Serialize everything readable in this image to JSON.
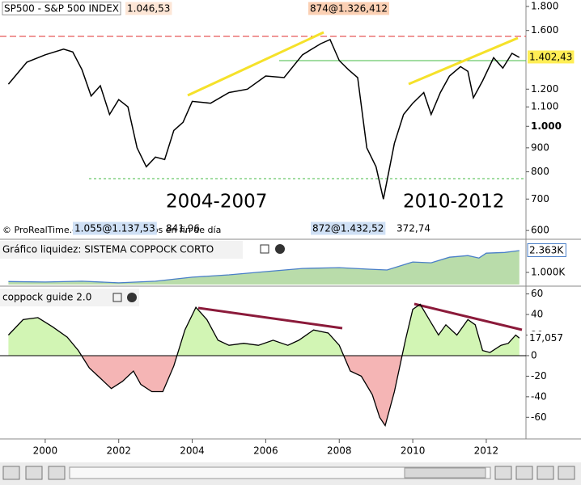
{
  "chart_data": [
    {
      "type": "line",
      "title": "SP500 - S&P 500 INDEX",
      "annotations": [
        "1.046,53",
        "874@1.326,412",
        "2004-2007",
        "2010-2012",
        "© ProRealTime.com Datos recibidos en fin de día",
        "1.055@1.137,53",
        "841,96",
        "872@1.432,52",
        "372,74"
      ],
      "x": [
        1999.0,
        1999.5,
        2000.0,
        2000.5,
        2000.75,
        2001.0,
        2001.25,
        2001.5,
        2001.75,
        2002.0,
        2002.25,
        2002.5,
        2002.75,
        2003.0,
        2003.25,
        2003.5,
        2003.75,
        2004.0,
        2004.5,
        2005.0,
        2005.5,
        2006.0,
        2006.5,
        2007.0,
        2007.5,
        2007.75,
        2008.0,
        2008.25,
        2008.5,
        2008.75,
        2009.0,
        2009.2,
        2009.5,
        2009.75,
        2010.0,
        2010.3,
        2010.5,
        2010.75,
        2011.0,
        2011.3,
        2011.5,
        2011.65,
        2011.9,
        2012.2,
        2012.45,
        2012.7,
        2012.9
      ],
      "series": [
        {
          "name": "SP500",
          "color": "#000000",
          "values": [
            1230,
            1370,
            1420,
            1460,
            1440,
            1320,
            1160,
            1220,
            1060,
            1140,
            1100,
            900,
            820,
            860,
            850,
            980,
            1020,
            1130,
            1120,
            1180,
            1200,
            1280,
            1270,
            1420,
            1500,
            1530,
            1380,
            1320,
            1270,
            900,
            820,
            700,
            920,
            1060,
            1120,
            1180,
            1060,
            1180,
            1280,
            1340,
            1310,
            1150,
            1250,
            1400,
            1330,
            1430,
            1402.43
          ],
          "value_labels": [
            null,
            null,
            null,
            null,
            null,
            null,
            null,
            null,
            null,
            null,
            null,
            null,
            null,
            null,
            null,
            null,
            null,
            null,
            null,
            null,
            null,
            null,
            null,
            null,
            null,
            null,
            null,
            null,
            null,
            null,
            null,
            null,
            null,
            null,
            null,
            null,
            null,
            null,
            null,
            null,
            null,
            null,
            null,
            null,
            null,
            null,
            "1.402,43"
          ]
        }
      ],
      "log_scale": true,
      "xlim": [
        1998.77,
        2013.08
      ],
      "ylim": [
        577,
        1858
      ],
      "yticks": [
        {
          "value": 1800,
          "label": "1.800"
        },
        {
          "value": 1600,
          "label": "1.600"
        },
        {
          "value": 1200,
          "label": "1.200"
        },
        {
          "value": 1100,
          "label": "1.100"
        },
        {
          "value": 1000,
          "label": "1.000"
        },
        900,
        800,
        700,
        600
      ]
    },
    {
      "type": "area",
      "title": "Gráfico liquidez: SISTEMA COPPOCK CORTO",
      "x": [
        1999.0,
        2000.0,
        2001.0,
        2002.0,
        2003.0,
        2004.0,
        2005.0,
        2006.0,
        2007.0,
        2008.0,
        2008.8,
        2009.3,
        2010.0,
        2010.5,
        2011.0,
        2011.5,
        2011.8,
        2012.0,
        2012.5,
        2012.9
      ],
      "values": [
        430,
        400,
        450,
        350,
        450,
        700,
        850,
        1050,
        1250,
        1300,
        1200,
        1150,
        1650,
        1600,
        1950,
        2050,
        1900,
        2200,
        2250,
        2363
      ],
      "value_labels": [
        null,
        null,
        null,
        null,
        null,
        null,
        null,
        null,
        null,
        null,
        null,
        null,
        null,
        null,
        null,
        null,
        null,
        null,
        null,
        "2.363K"
      ],
      "color": "#4a7fc8",
      "fill": "#b9dcaa",
      "xlim": [
        1998.77,
        2013.08
      ],
      "ylim": [
        243,
        3020
      ],
      "yticks": [
        {
          "value": 1000,
          "label": "1.000K"
        }
      ]
    },
    {
      "type": "area",
      "title": "coppock guide 2.0",
      "x": [
        1999.0,
        1999.4,
        1999.8,
        2000.2,
        2000.6,
        2000.9,
        2001.2,
        2001.5,
        2001.8,
        2002.1,
        2002.4,
        2002.6,
        2002.9,
        2003.2,
        2003.5,
        2003.8,
        2004.1,
        2004.4,
        2004.7,
        2005.0,
        2005.4,
        2005.8,
        2006.2,
        2006.6,
        2006.9,
        2007.3,
        2007.7,
        2008.0,
        2008.3,
        2008.6,
        2008.9,
        2009.1,
        2009.25,
        2009.5,
        2009.8,
        2010.0,
        2010.2,
        2010.5,
        2010.7,
        2010.9,
        2011.2,
        2011.5,
        2011.7,
        2011.9,
        2012.1,
        2012.4,
        2012.6,
        2012.8,
        2012.9
      ],
      "values": [
        20,
        35,
        37,
        28,
        18,
        5,
        -12,
        -22,
        -32,
        -25,
        -15,
        -28,
        -35,
        -35,
        -10,
        25,
        47,
        35,
        15,
        10,
        12,
        10,
        15,
        10,
        15,
        25,
        22,
        10,
        -15,
        -20,
        -38,
        -60,
        -68,
        -35,
        15,
        45,
        50,
        32,
        20,
        30,
        20,
        35,
        30,
        5,
        3,
        10,
        12,
        20,
        17.057
      ],
      "value_labels": [
        null,
        null,
        null,
        null,
        null,
        null,
        null,
        null,
        null,
        null,
        null,
        null,
        null,
        null,
        null,
        null,
        null,
        null,
        null,
        null,
        null,
        null,
        null,
        null,
        null,
        null,
        null,
        null,
        null,
        null,
        null,
        null,
        null,
        null,
        null,
        null,
        null,
        null,
        null,
        null,
        null,
        null,
        null,
        null,
        null,
        null,
        null,
        null,
        "17,057"
      ],
      "color": "#000000",
      "positive_fill": "#d2f5b4",
      "negative_fill": "#f5b5b5",
      "xlim": [
        1998.77,
        2013.08
      ],
      "ylim": [
        -81,
        66
      ],
      "yticks": [
        60,
        40,
        20,
        0,
        -20,
        -40,
        -60
      ],
      "xticks": [
        2000,
        2002,
        2004,
        2006,
        2008,
        2010,
        2012
      ]
    }
  ]
}
